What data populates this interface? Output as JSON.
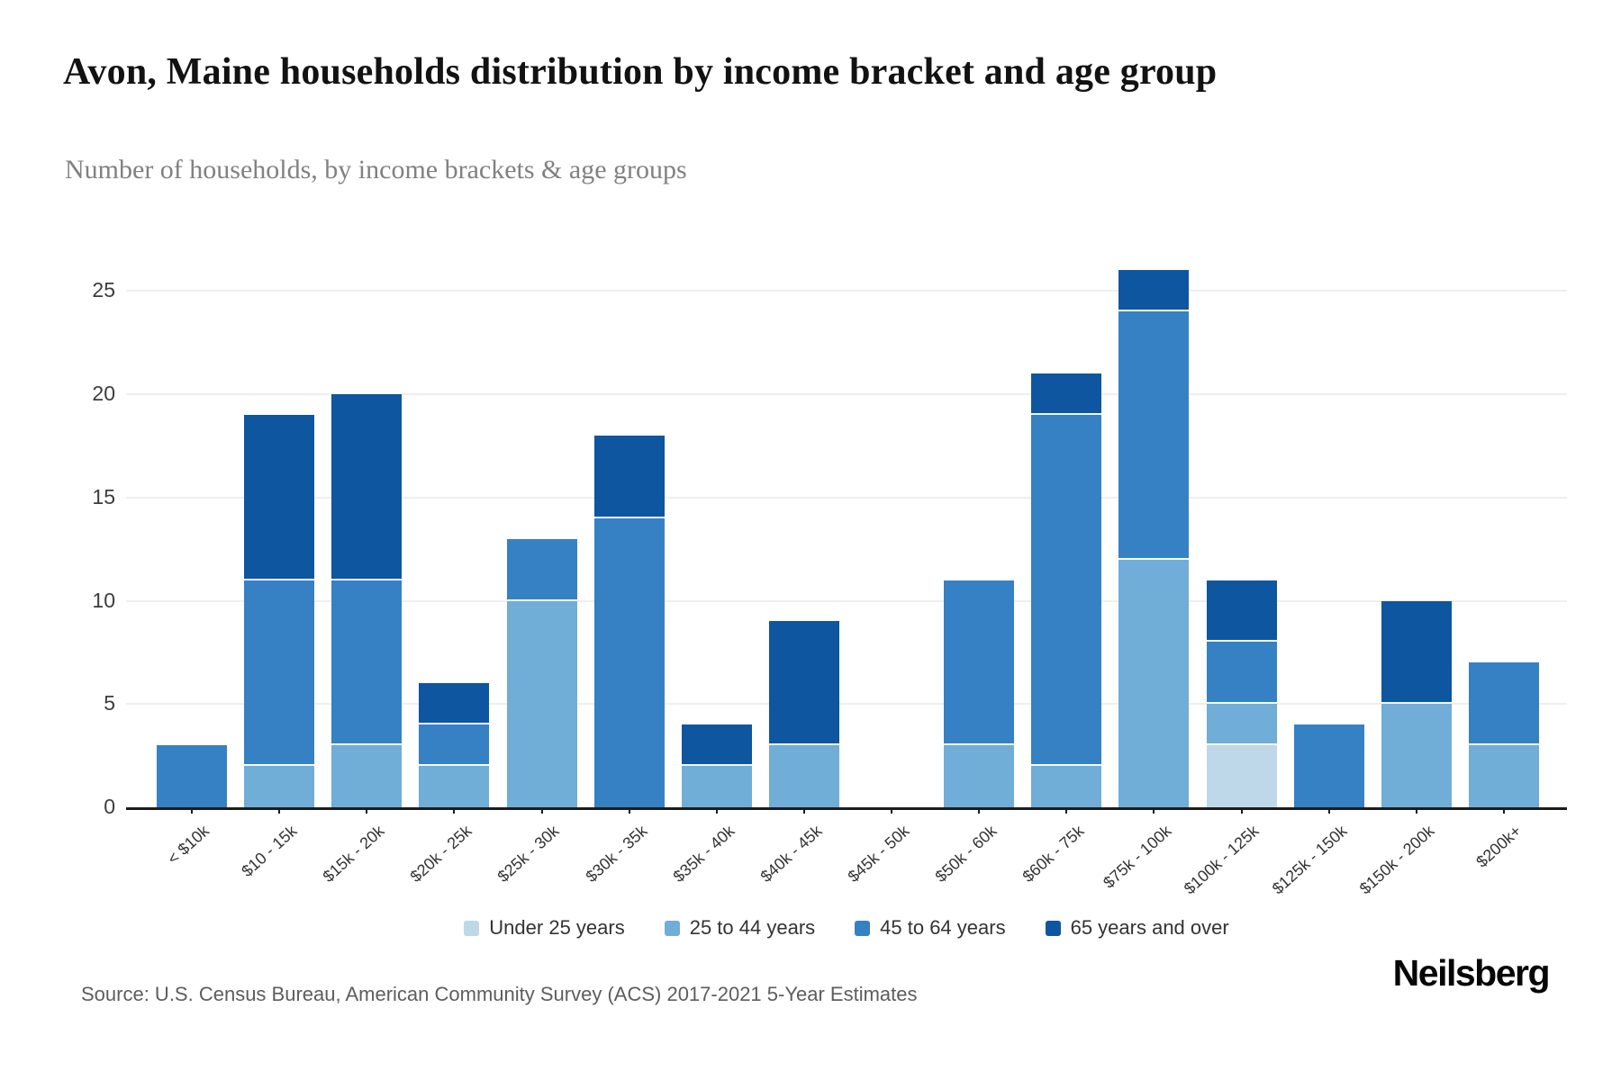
{
  "header": {
    "title": "Avon, Maine households distribution by income bracket and age group",
    "subtitle": "Number of households, by income brackets & age groups"
  },
  "footer": {
    "source": "Source: U.S. Census Bureau, American Community Survey (ACS) 2017-2021 5-Year Estimates",
    "brand": "Neilsberg"
  },
  "colors": {
    "under_25": "#bed8ea",
    "age_25_44": "#70add7",
    "age_45_64": "#3581c4",
    "age_65_over": "#0e56a0",
    "gridline": "#efefef",
    "axis": "#1c1c1c"
  },
  "chart_data": {
    "type": "bar",
    "stacked": true,
    "title": "Avon, Maine households distribution by income bracket and age group",
    "xlabel": "",
    "ylabel": "Number of households",
    "ylim": [
      0,
      27
    ],
    "yticks": [
      0,
      5,
      10,
      15,
      20,
      25
    ],
    "grid": true,
    "legend_position": "bottom",
    "categories": [
      "< $10k",
      "$10 - 15k",
      "$15k - 20k",
      "$20k - 25k",
      "$25k - 30k",
      "$30k - 35k",
      "$35k - 40k",
      "$40k - 45k",
      "$45k - 50k",
      "$50k - 60k",
      "$60k - 75k",
      "$75k - 100k",
      "$100k - 125k",
      "$125k - 150k",
      "$150k - 200k",
      "$200k+"
    ],
    "series": [
      {
        "name": "Under 25 years",
        "color_key": "under_25",
        "values": [
          0,
          0,
          0,
          0,
          0,
          0,
          0,
          0,
          0,
          0,
          0,
          0,
          3,
          0,
          0,
          0
        ]
      },
      {
        "name": "25 to 44 years",
        "color_key": "age_25_44",
        "values": [
          0,
          2,
          3,
          2,
          10,
          0,
          2,
          3,
          0,
          3,
          2,
          12,
          2,
          0,
          5,
          3
        ]
      },
      {
        "name": "45 to 64 years",
        "color_key": "age_45_64",
        "values": [
          3,
          9,
          8,
          2,
          3,
          14,
          0,
          0,
          0,
          8,
          17,
          12,
          3,
          4,
          0,
          4
        ]
      },
      {
        "name": "65 years and over",
        "color_key": "age_65_over",
        "values": [
          0,
          8,
          9,
          2,
          0,
          4,
          2,
          6,
          0,
          0,
          2,
          2,
          3,
          0,
          5,
          0
        ]
      }
    ],
    "totals": [
      3,
      19,
      20,
      6,
      13,
      18,
      4,
      9,
      0,
      11,
      21,
      26,
      11,
      4,
      10,
      7
    ]
  }
}
